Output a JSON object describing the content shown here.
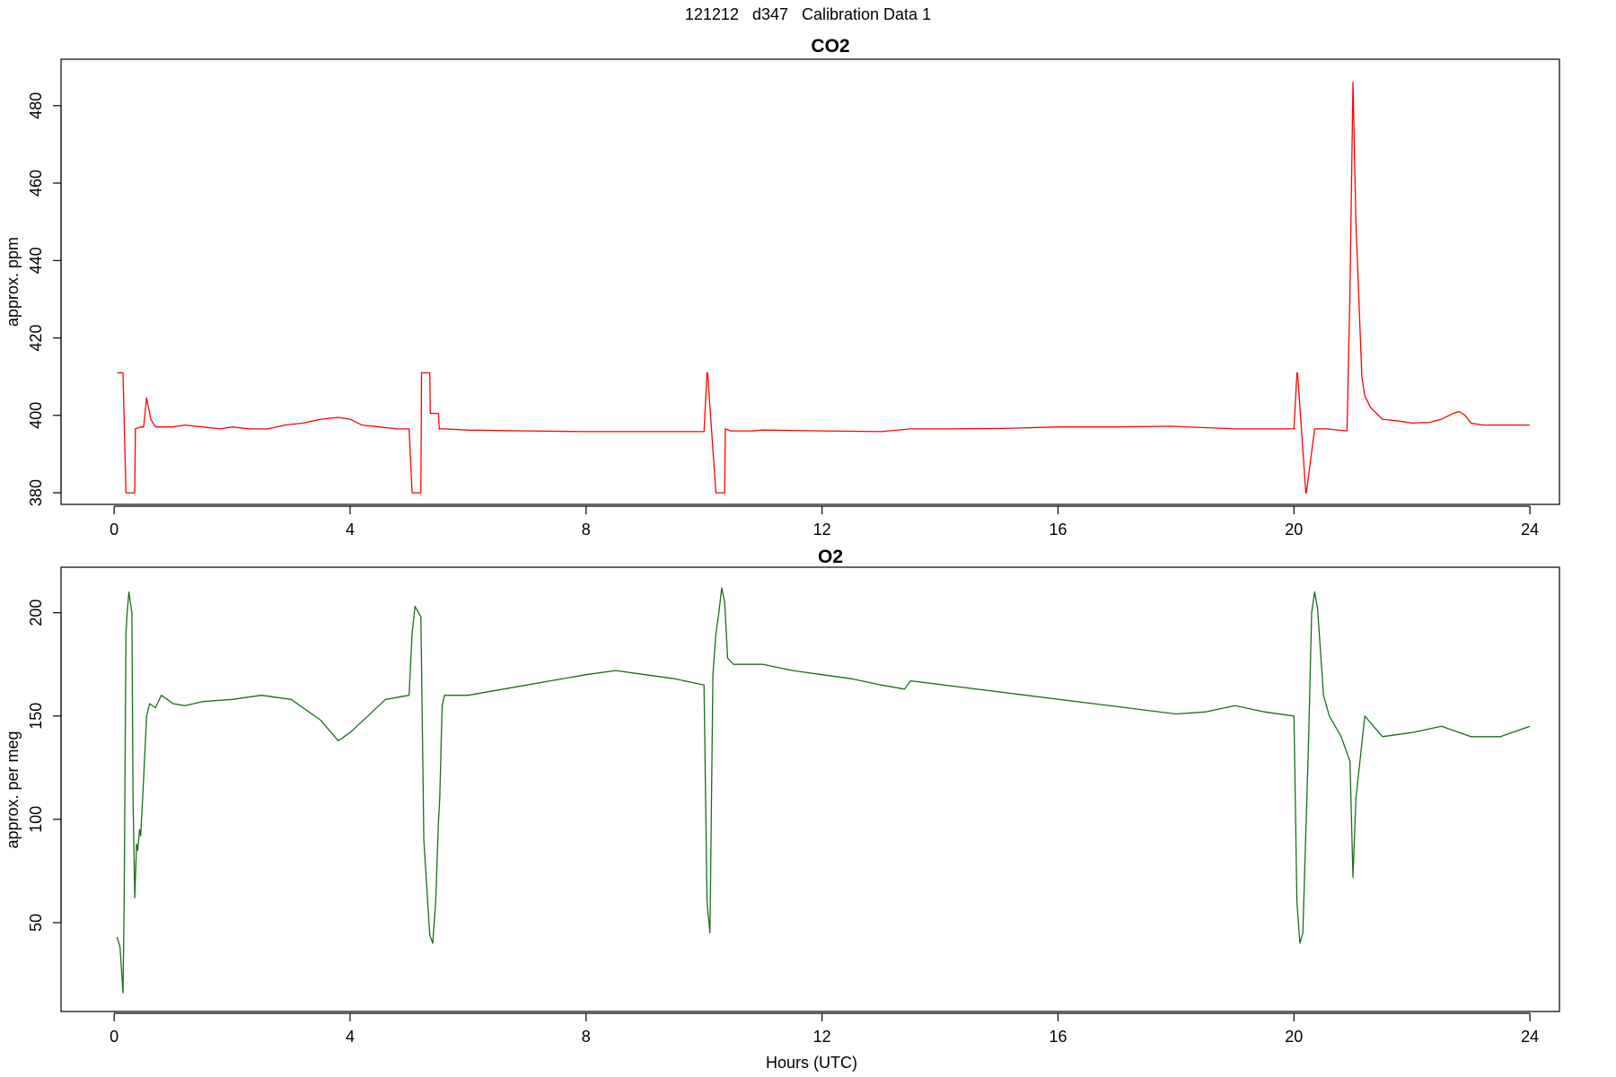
{
  "figure": {
    "title": "121212   d347   Calibration Data 1"
  },
  "chart_data": [
    {
      "type": "line",
      "title": "CO2",
      "xlabel": "",
      "ylabel": "approx. ppm",
      "xlim": [
        -0.9,
        24.5
      ],
      "ylim": [
        377,
        492
      ],
      "xticks": [
        0,
        4,
        8,
        12,
        16,
        20,
        24
      ],
      "yticks": [
        380,
        400,
        420,
        440,
        460,
        480
      ],
      "grid": false,
      "color": "#ff0000",
      "series": [
        {
          "x": [
            0.05,
            0.15,
            0.2,
            0.35,
            0.36,
            0.45,
            0.5,
            0.55,
            0.62,
            0.7,
            0.85,
            1.0,
            1.2,
            1.5,
            1.8,
            2.0,
            2.3,
            2.6,
            2.9,
            3.2,
            3.5,
            3.8,
            4.0,
            4.2,
            4.5,
            4.8,
            5.0,
            5.05,
            5.06,
            5.2,
            5.21,
            5.35,
            5.36,
            5.5,
            5.51,
            5.6,
            6.0,
            7.0,
            8.0,
            9.0,
            10.0,
            10.05,
            10.06,
            10.2,
            10.21,
            10.35,
            10.36,
            10.45,
            10.5,
            10.55,
            10.8,
            11.0,
            12.0,
            13.0,
            13.5,
            14.0,
            15.0,
            16.0,
            17.0,
            17.9,
            19.0,
            20.0,
            20.05,
            20.06,
            20.2,
            20.21,
            20.35,
            20.36,
            20.5,
            20.55,
            20.9,
            20.95,
            21.0,
            21.05,
            21.1,
            21.15,
            21.2,
            21.3,
            21.5,
            21.8,
            22.0,
            22.3,
            22.5,
            22.7,
            22.8,
            22.9,
            23.0,
            23.2,
            23.5,
            24.0
          ],
          "y": [
            411,
            411,
            380,
            380,
            396.5,
            397,
            397,
            404.5,
            399,
            397,
            397,
            397,
            397.5,
            397,
            396.5,
            397,
            396.5,
            396.5,
            397.5,
            398,
            399,
            399.5,
            399,
            397.5,
            397,
            396.5,
            396.5,
            380,
            380,
            380,
            411,
            411,
            400.5,
            400.5,
            396.5,
            396.5,
            396.2,
            396,
            395.8,
            395.8,
            395.8,
            411,
            411,
            380,
            380,
            380,
            396.5,
            396,
            396,
            396,
            396,
            396.2,
            396,
            395.8,
            396.5,
            396.5,
            396.6,
            397,
            397,
            397.2,
            396.5,
            396.5,
            411,
            411,
            380,
            380,
            396.5,
            396.5,
            396.5,
            396.5,
            396,
            432,
            486,
            450,
            430,
            410,
            405,
            402,
            399,
            398.5,
            398,
            398.2,
            399,
            400.5,
            401,
            400,
            398,
            397.5,
            397.5,
            397.5
          ]
        }
      ]
    },
    {
      "type": "line",
      "title": "O2",
      "xlabel": "Hours (UTC)",
      "ylabel": "approx. per meg",
      "xlim": [
        -0.9,
        24.5
      ],
      "ylim": [
        7,
        222
      ],
      "xticks": [
        0,
        4,
        8,
        12,
        16,
        20,
        24
      ],
      "yticks": [
        50,
        100,
        150,
        200
      ],
      "grid": false,
      "color": "#1a6e1a",
      "series": [
        {
          "x": [
            0.05,
            0.1,
            0.15,
            0.17,
            0.2,
            0.22,
            0.25,
            0.3,
            0.32,
            0.35,
            0.38,
            0.4,
            0.43,
            0.45,
            0.5,
            0.55,
            0.6,
            0.7,
            0.8,
            0.9,
            1.0,
            1.2,
            1.5,
            2.0,
            2.5,
            3.0,
            3.5,
            3.8,
            4.0,
            4.3,
            4.6,
            5.0,
            5.05,
            5.1,
            5.2,
            5.25,
            5.35,
            5.4,
            5.45,
            5.5,
            5.52,
            5.56,
            5.6,
            5.7,
            6.0,
            7.0,
            8.0,
            8.5,
            9.0,
            9.5,
            10.0,
            10.05,
            10.1,
            10.15,
            10.2,
            10.25,
            10.3,
            10.35,
            10.4,
            10.5,
            11.0,
            11.5,
            12.0,
            12.5,
            13.0,
            13.4,
            13.5,
            18.0,
            18.5,
            19.0,
            19.5,
            20.0,
            20.05,
            20.1,
            20.15,
            20.25,
            20.3,
            20.35,
            20.4,
            20.5,
            20.6,
            20.8,
            20.95,
            21.0,
            21.05,
            21.2,
            21.5,
            22.0,
            22.5,
            23.0,
            23.5,
            24.0
          ],
          "y": [
            43,
            38,
            16,
            60,
            190,
            200,
            210,
            200,
            110,
            62,
            88,
            85,
            95,
            92,
            120,
            150,
            156,
            154,
            160,
            158,
            156,
            155,
            157,
            158,
            160,
            158,
            148,
            138,
            142,
            150,
            158,
            160,
            190,
            203,
            198,
            90,
            44,
            40,
            60,
            100,
            110,
            155,
            160,
            160,
            160,
            165,
            170,
            172,
            170,
            168,
            165,
            60,
            45,
            170,
            190,
            200,
            212,
            205,
            178,
            175,
            175,
            172,
            170,
            168,
            165,
            163,
            167,
            151,
            152,
            155,
            152,
            150,
            60,
            40,
            45,
            140,
            200,
            210,
            202,
            160,
            150,
            140,
            128,
            72,
            110,
            150,
            140,
            142,
            145,
            140,
            140,
            145
          ]
        }
      ]
    }
  ]
}
